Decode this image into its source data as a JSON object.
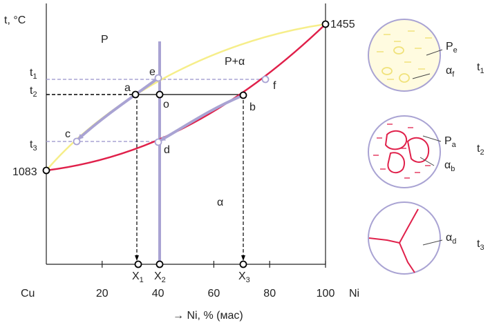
{
  "diagram": {
    "y_axis_label": "t, °C",
    "x_axis": {
      "start": "Cu",
      "end": "Ni",
      "ticks": [
        20,
        40,
        60,
        80,
        100
      ],
      "label": "→ Ni, % (мас)"
    },
    "melting_points": {
      "cu": "1083",
      "ni": "1455"
    },
    "regions": {
      "liquid": "P",
      "two_phase": "P+α",
      "solid": "α"
    },
    "temperatures": [
      {
        "base": "t",
        "sub": "1"
      },
      {
        "base": "t",
        "sub": "2"
      },
      {
        "base": "t",
        "sub": "3"
      }
    ],
    "points": {
      "a": "a",
      "b": "b",
      "c": "c",
      "d": "d",
      "e": "e",
      "f": "f",
      "o": "o"
    },
    "compositions": [
      {
        "base": "X",
        "sub": "1"
      },
      {
        "base": "X",
        "sub": "2"
      },
      {
        "base": "X",
        "sub": "3"
      }
    ],
    "structures": [
      {
        "labels": [
          {
            "base": "P",
            "sub": "e"
          },
          {
            "base": "α",
            "sub": "f"
          }
        ],
        "temperature": {
          "base": "t",
          "sub": "1"
        }
      },
      {
        "labels": [
          {
            "base": "P",
            "sub": "a"
          },
          {
            "base": "α",
            "sub": "b"
          }
        ],
        "temperature": {
          "base": "t",
          "sub": "2"
        }
      },
      {
        "labels": [
          {
            "base": "α",
            "sub": "d"
          }
        ],
        "temperature": {
          "base": "t",
          "sub": "3"
        }
      }
    ]
  }
}
